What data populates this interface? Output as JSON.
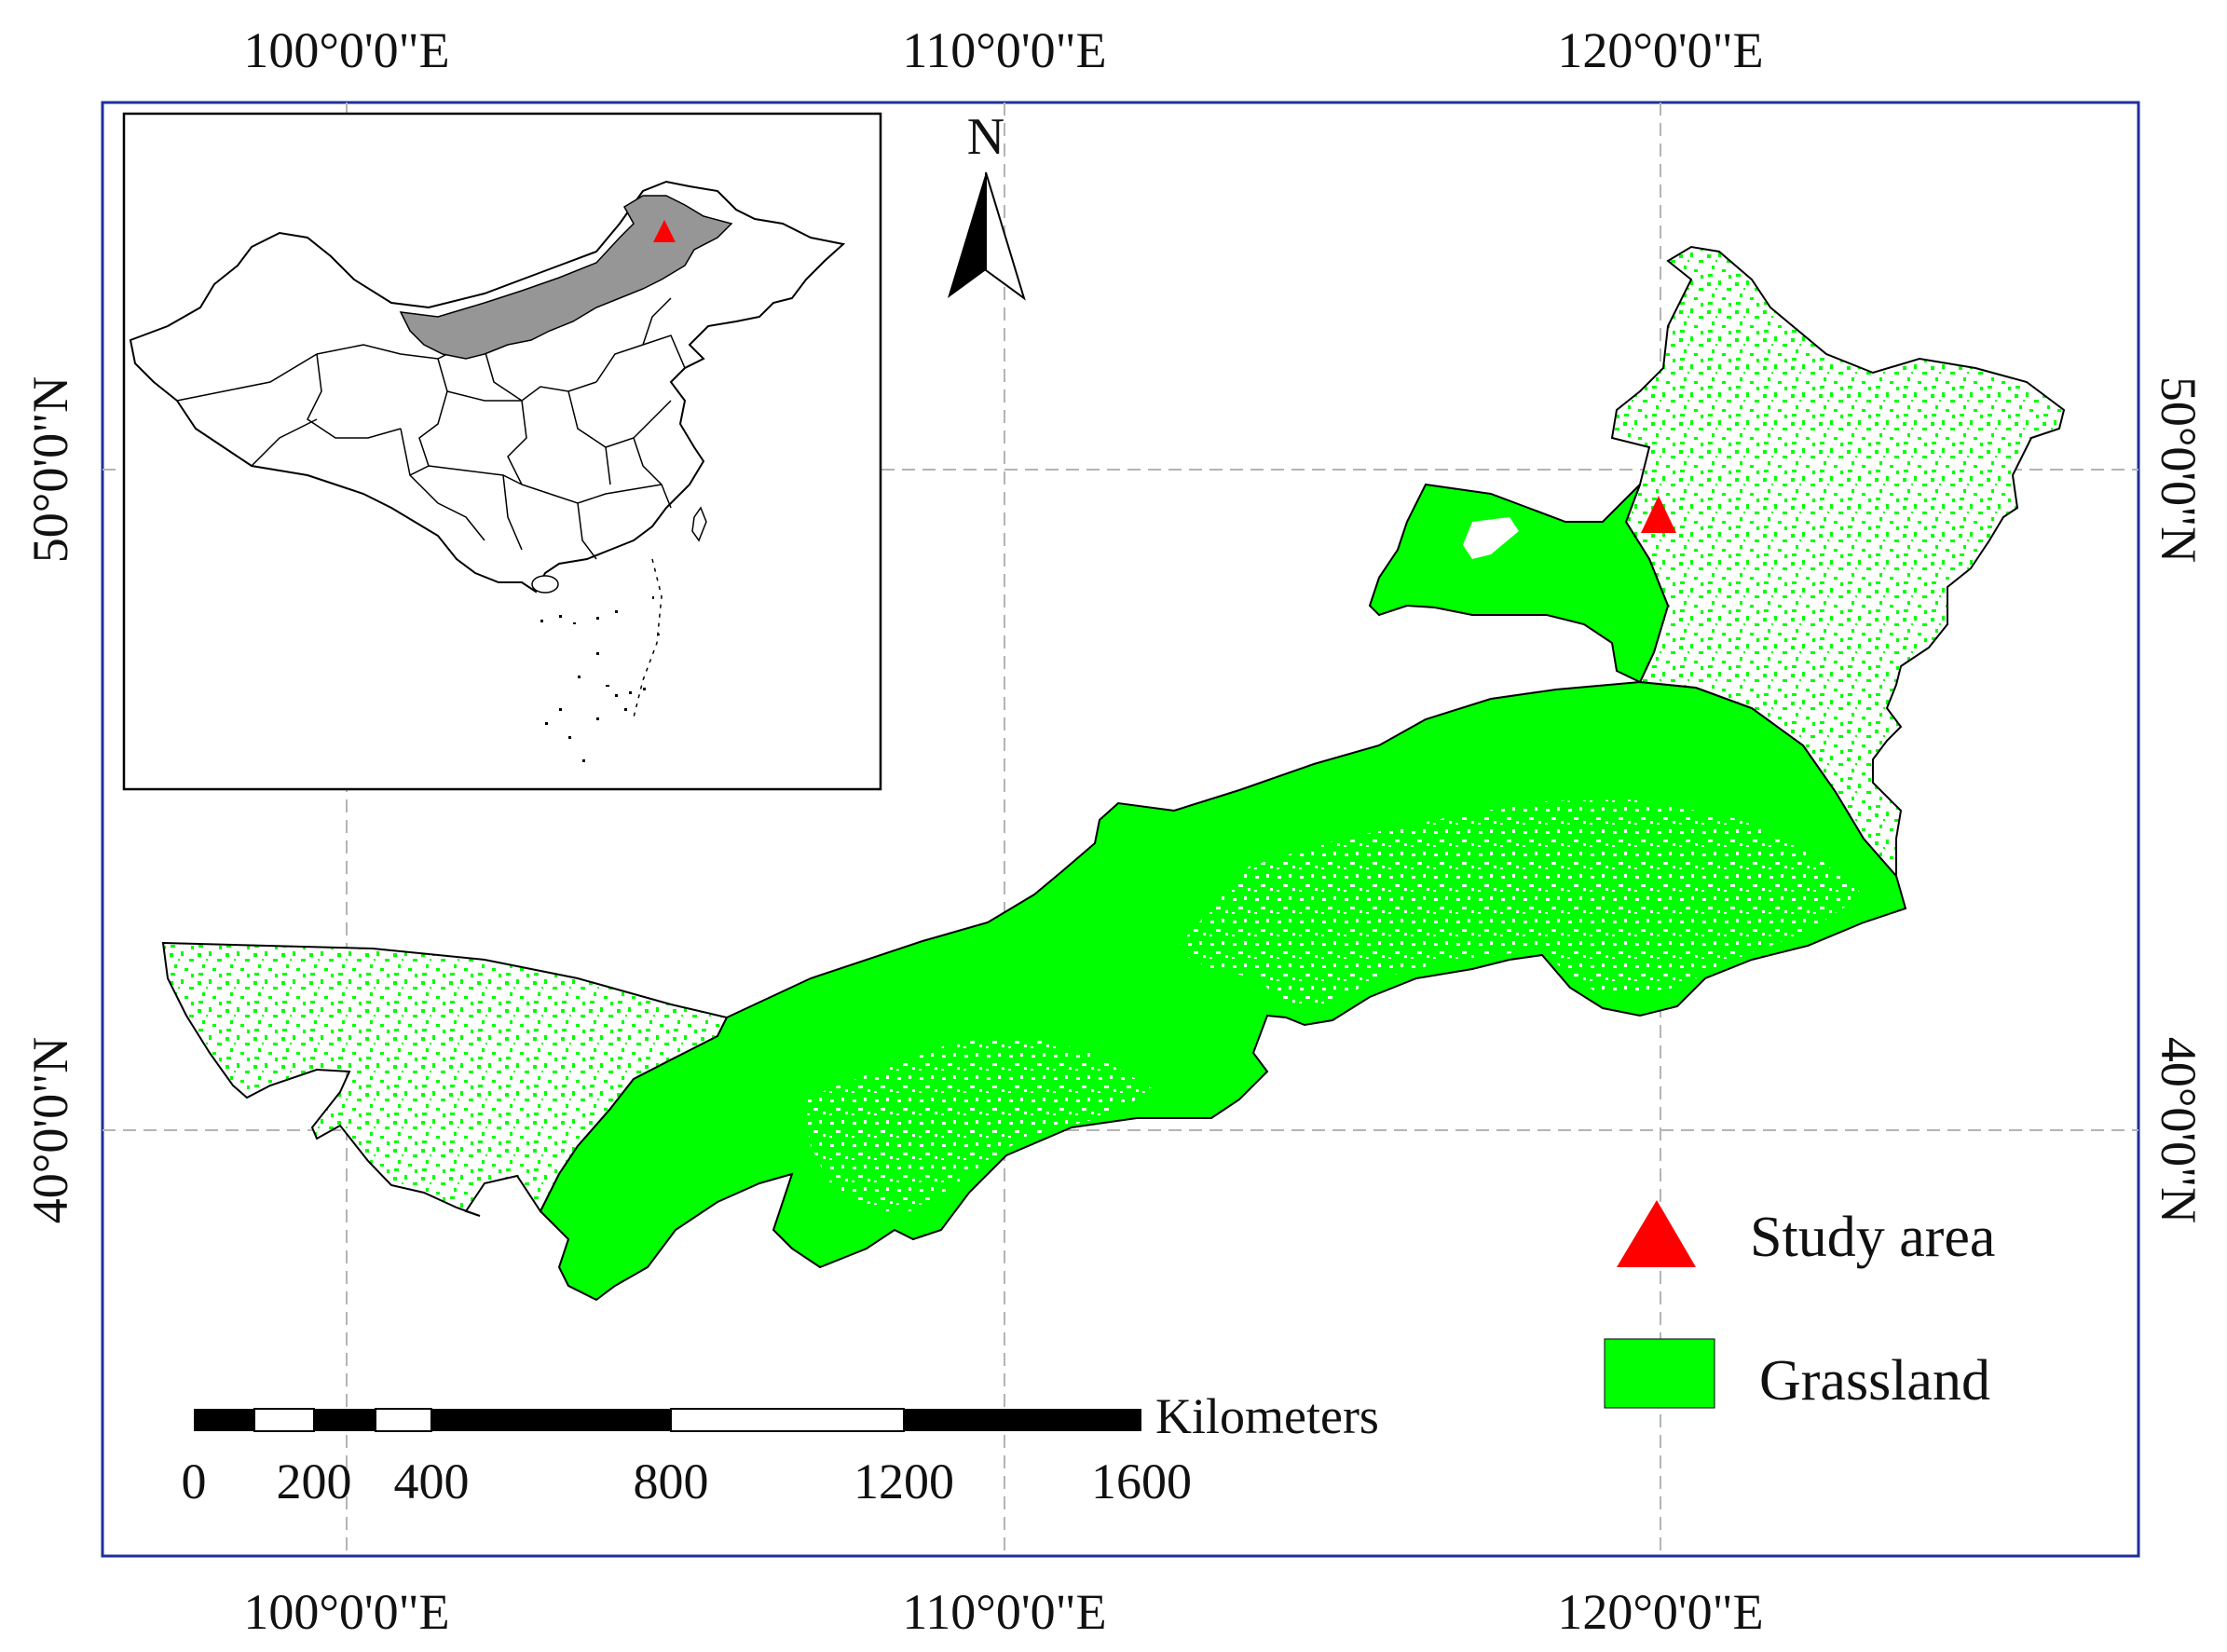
{
  "map": {
    "top_longitude_labels": [
      "100°0'0\"E",
      "110°0'0\"E",
      "120°0'0\"E"
    ],
    "bottom_longitude_labels": [
      "100°0'0\"E",
      "110°0'0\"E",
      "120°0'0\"E"
    ],
    "left_latitude_labels": [
      "50°0'0\"N",
      "40°0'0\"N"
    ],
    "right_latitude_labels": [
      "50°0'0\"N",
      "40°0'0\"N"
    ],
    "north_arrow": {
      "label": "N"
    },
    "scale_bar": {
      "unit_label": "Kilometers",
      "tick_labels": [
        "0",
        "200",
        "400",
        "800",
        "1200",
        "1600"
      ]
    },
    "legend": {
      "items": [
        {
          "label": "Study area",
          "symbol": "triangle-icon",
          "color": "#ff0000"
        },
        {
          "label": "Grassland",
          "symbol": "green-square-icon",
          "color": "#00ff00"
        }
      ]
    },
    "inset": {
      "highlight_color": "#969696",
      "marker_color": "#ff0000"
    },
    "colors": {
      "grassland": "#00ff00",
      "frame": "#1f2f9c",
      "grid": "#b4b4b4",
      "outline": "#000000"
    }
  }
}
